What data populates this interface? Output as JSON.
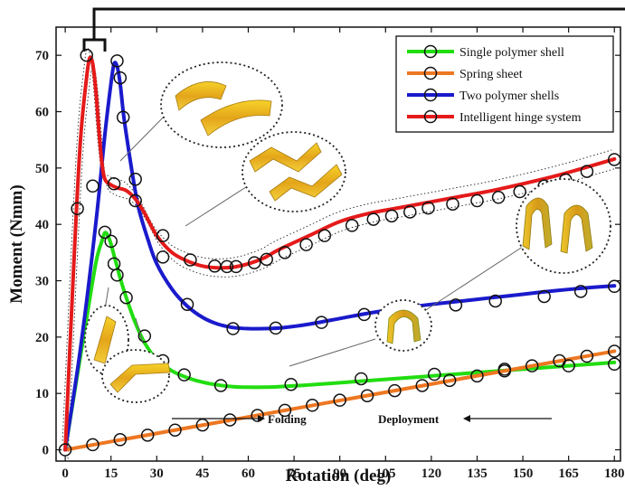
{
  "chart_data": {
    "type": "line",
    "xlabel": "Rotation (deg)",
    "ylabel": "Moment (Nmm)",
    "xlim": [
      -3,
      182
    ],
    "ylim": [
      -2,
      75
    ],
    "xticks": [
      0,
      15,
      30,
      45,
      60,
      75,
      90,
      105,
      120,
      135,
      150,
      165,
      180
    ],
    "yticks": [
      0,
      10,
      20,
      30,
      40,
      50,
      60,
      70
    ],
    "legend_position": "top-right",
    "annotations": {
      "folding": "Folding",
      "deployment": "Deployment"
    },
    "series": [
      {
        "name": "Single polymer shell",
        "color": "#22dd11",
        "x": [
          0,
          6,
          10,
          12,
          13,
          14,
          15,
          16,
          17,
          18,
          20,
          23,
          26,
          30,
          35,
          40,
          45,
          50,
          55,
          60,
          65,
          70,
          80,
          90,
          100,
          110,
          120,
          130,
          140,
          150,
          160,
          170,
          180
        ],
        "y": [
          0,
          20,
          33,
          37,
          38.5,
          38,
          36.5,
          34.5,
          32.5,
          30.5,
          27,
          22.5,
          19,
          16,
          14,
          12.8,
          12,
          11.5,
          11.2,
          11.1,
          11.1,
          11.2,
          11.5,
          11.9,
          12.3,
          12.7,
          13.1,
          13.5,
          13.9,
          14.3,
          14.7,
          15.1,
          15.5
        ],
        "markers_x": [
          13,
          15,
          16,
          17,
          20,
          26,
          32,
          39,
          51,
          74,
          97,
          121,
          144,
          165,
          180
        ],
        "markers_y": [
          38.6,
          37,
          33,
          31,
          27,
          20.2,
          15.8,
          13.3,
          11.4,
          11.6,
          12.6,
          13.4,
          14.3,
          14.9,
          15.2
        ]
      },
      {
        "name": "Spring sheet",
        "color": "#ee7722",
        "x": [
          0,
          180
        ],
        "y": [
          0,
          17.5
        ],
        "markers_x": [
          9,
          18,
          27,
          36,
          45,
          54,
          63,
          72,
          81,
          90,
          99,
          108,
          117,
          126,
          135,
          144,
          153,
          162,
          171,
          180
        ],
        "markers_y": [
          0.9,
          1.8,
          2.6,
          3.5,
          4.4,
          5.3,
          6.1,
          7.0,
          7.9,
          8.8,
          9.6,
          10.5,
          11.4,
          12.3,
          13.1,
          14.0,
          14.9,
          15.8,
          16.6,
          17.5
        ]
      },
      {
        "name": "Two polymer shells",
        "color": "#1a1acc",
        "x": [
          0,
          5,
          10,
          13,
          15,
          16,
          17,
          18,
          19,
          20,
          22,
          24,
          27,
          30,
          35,
          40,
          45,
          50,
          55,
          60,
          65,
          70,
          75,
          80,
          90,
          100,
          110,
          120,
          130,
          140,
          150,
          160,
          170,
          180
        ],
        "y": [
          0,
          18,
          40,
          56,
          65,
          68.5,
          68,
          65,
          60,
          56,
          49,
          43,
          37.5,
          33,
          28.5,
          25.5,
          23.5,
          22.3,
          21.7,
          21.5,
          21.5,
          21.6,
          21.9,
          22.3,
          23.3,
          24.3,
          25.1,
          25.8,
          26.4,
          27,
          27.6,
          28.2,
          28.7,
          29.1
        ],
        "markers_x": [
          17,
          18,
          19,
          23,
          32,
          40,
          55,
          69,
          84,
          98,
          113,
          128,
          141,
          157,
          169,
          180
        ],
        "markers_y": [
          69,
          66,
          59,
          48,
          34.2,
          25.8,
          21.5,
          21.6,
          22.6,
          24,
          24.9,
          25.7,
          26.4,
          27.2,
          28.1,
          29
        ]
      },
      {
        "name": "Intelligent hinge system",
        "color": "#e51a1a",
        "x": [
          0,
          3,
          5,
          7,
          8,
          9,
          10,
          11,
          12,
          13,
          15,
          17,
          20,
          23,
          26,
          30,
          35,
          40,
          45,
          50,
          55,
          60,
          65,
          70,
          80,
          90,
          100,
          110,
          120,
          130,
          140,
          150,
          160,
          170,
          180
        ],
        "y": [
          0,
          35,
          55,
          66,
          69.5,
          68.5,
          64,
          57,
          51,
          48,
          47,
          46.5,
          46,
          44.5,
          42,
          38,
          35,
          33.5,
          32.6,
          32.3,
          32.4,
          33,
          34,
          35.5,
          38,
          40.5,
          42,
          43,
          44,
          45,
          46,
          47.2,
          48.5,
          50,
          51.6
        ],
        "markers_x": [
          7,
          9,
          4,
          16,
          23,
          32,
          41,
          49,
          53,
          56,
          62,
          66,
          72,
          79,
          85,
          94,
          101,
          107,
          113,
          119,
          127,
          135,
          142,
          149,
          157,
          164,
          171,
          180
        ],
        "markers_y": [
          70,
          46.8,
          42.8,
          47.2,
          44.2,
          38,
          33.7,
          32.6,
          32.5,
          32.5,
          33.2,
          33.8,
          35,
          36.4,
          38,
          39.8,
          40.9,
          41.5,
          42.2,
          42.9,
          43.6,
          44.2,
          44.8,
          45.8,
          46.8,
          47.9,
          49.4,
          51.5
        ]
      }
    ]
  }
}
